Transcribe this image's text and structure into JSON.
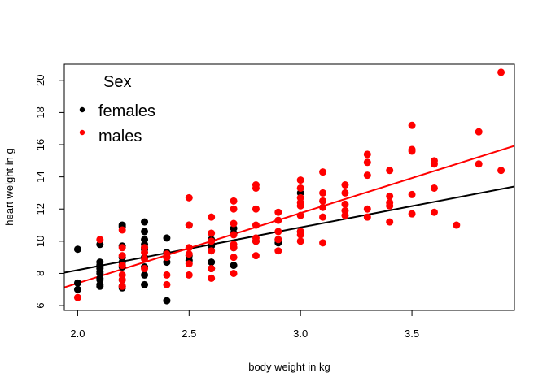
{
  "chart_data": {
    "type": "scatter",
    "title": "",
    "xlabel": "body weight in kg",
    "ylabel": "heart weight in g",
    "xlim": [
      1.94,
      3.96
    ],
    "ylim": [
      5.7,
      21.0
    ],
    "xticks": [
      2.0,
      2.5,
      3.0,
      3.5
    ],
    "xtick_labels": [
      "2.0",
      "2.5",
      "3.0",
      "3.5"
    ],
    "yticks": [
      6,
      8,
      10,
      12,
      14,
      16,
      18,
      20
    ],
    "ytick_labels": [
      "6",
      "8",
      "10",
      "12",
      "14",
      "16",
      "18",
      "20"
    ],
    "grid": false,
    "legend": {
      "title": "Sex",
      "position": "top-left",
      "entries": [
        {
          "label": "females",
          "color": "#000000"
        },
        {
          "label": "males",
          "color": "#ff0000"
        }
      ]
    },
    "series": [
      {
        "name": "females",
        "color": "#000000",
        "points": [
          [
            2.0,
            7.0
          ],
          [
            2.0,
            7.4
          ],
          [
            2.0,
            9.5
          ],
          [
            2.1,
            7.2
          ],
          [
            2.1,
            7.3
          ],
          [
            2.1,
            7.6
          ],
          [
            2.1,
            7.7
          ],
          [
            2.1,
            8.0
          ],
          [
            2.1,
            8.1
          ],
          [
            2.1,
            8.3
          ],
          [
            2.1,
            8.4
          ],
          [
            2.1,
            8.5
          ],
          [
            2.1,
            8.7
          ],
          [
            2.1,
            9.8
          ],
          [
            2.2,
            7.1
          ],
          [
            2.2,
            7.2
          ],
          [
            2.2,
            7.6
          ],
          [
            2.2,
            8.4
          ],
          [
            2.2,
            8.7
          ],
          [
            2.2,
            9.0
          ],
          [
            2.2,
            9.7
          ],
          [
            2.2,
            10.9
          ],
          [
            2.2,
            11.0
          ],
          [
            2.3,
            7.3
          ],
          [
            2.3,
            7.9
          ],
          [
            2.3,
            8.4
          ],
          [
            2.3,
            9.0
          ],
          [
            2.3,
            9.5
          ],
          [
            2.3,
            9.6
          ],
          [
            2.3,
            9.8
          ],
          [
            2.3,
            10.1
          ],
          [
            2.3,
            10.6
          ],
          [
            2.3,
            11.2
          ],
          [
            2.4,
            6.3
          ],
          [
            2.4,
            8.7
          ],
          [
            2.4,
            9.0
          ],
          [
            2.4,
            9.3
          ],
          [
            2.4,
            10.2
          ],
          [
            2.5,
            8.8
          ],
          [
            2.5,
            9.1
          ],
          [
            2.5,
            11.0
          ],
          [
            2.6,
            8.3
          ],
          [
            2.6,
            8.7
          ],
          [
            2.6,
            9.7
          ],
          [
            2.6,
            10.1
          ],
          [
            2.7,
            8.5
          ],
          [
            2.7,
            9.6
          ],
          [
            2.7,
            10.5
          ],
          [
            2.7,
            10.8
          ],
          [
            2.8,
            10.0
          ],
          [
            2.9,
            9.9
          ],
          [
            2.9,
            10.1
          ],
          [
            3.0,
            10.6
          ],
          [
            3.0,
            13.0
          ]
        ]
      },
      {
        "name": "males",
        "color": "#ff0000",
        "points": [
          [
            2.0,
            6.5
          ],
          [
            2.1,
            10.1
          ],
          [
            2.2,
            7.2
          ],
          [
            2.2,
            7.6
          ],
          [
            2.2,
            7.9
          ],
          [
            2.2,
            8.5
          ],
          [
            2.2,
            9.1
          ],
          [
            2.2,
            9.6
          ],
          [
            2.2,
            10.7
          ],
          [
            2.3,
            8.3
          ],
          [
            2.3,
            8.9
          ],
          [
            2.3,
            9.3
          ],
          [
            2.3,
            9.6
          ],
          [
            2.4,
            7.3
          ],
          [
            2.4,
            7.9
          ],
          [
            2.4,
            9.0
          ],
          [
            2.4,
            9.2
          ],
          [
            2.5,
            7.9
          ],
          [
            2.5,
            8.6
          ],
          [
            2.5,
            9.2
          ],
          [
            2.5,
            9.6
          ],
          [
            2.5,
            11.0
          ],
          [
            2.5,
            12.7
          ],
          [
            2.6,
            7.7
          ],
          [
            2.6,
            8.3
          ],
          [
            2.6,
            9.4
          ],
          [
            2.6,
            10.0
          ],
          [
            2.6,
            10.5
          ],
          [
            2.6,
            11.5
          ],
          [
            2.7,
            8.0
          ],
          [
            2.7,
            9.0
          ],
          [
            2.7,
            9.6
          ],
          [
            2.7,
            9.8
          ],
          [
            2.7,
            10.4
          ],
          [
            2.7,
            11.1
          ],
          [
            2.7,
            12.0
          ],
          [
            2.7,
            12.5
          ],
          [
            2.8,
            9.1
          ],
          [
            2.8,
            10.0
          ],
          [
            2.8,
            10.2
          ],
          [
            2.8,
            11.0
          ],
          [
            2.8,
            12.0
          ],
          [
            2.8,
            13.3
          ],
          [
            2.8,
            13.5
          ],
          [
            2.9,
            9.4
          ],
          [
            2.9,
            10.1
          ],
          [
            2.9,
            10.6
          ],
          [
            2.9,
            11.3
          ],
          [
            2.9,
            11.8
          ],
          [
            3.0,
            10.0
          ],
          [
            3.0,
            10.4
          ],
          [
            3.0,
            10.6
          ],
          [
            3.0,
            11.6
          ],
          [
            3.0,
            12.2
          ],
          [
            3.0,
            12.4
          ],
          [
            3.0,
            12.7
          ],
          [
            3.0,
            13.3
          ],
          [
            3.0,
            13.8
          ],
          [
            3.1,
            9.9
          ],
          [
            3.1,
            11.5
          ],
          [
            3.1,
            12.1
          ],
          [
            3.1,
            12.5
          ],
          [
            3.1,
            13.0
          ],
          [
            3.1,
            14.3
          ],
          [
            3.2,
            11.6
          ],
          [
            3.2,
            11.9
          ],
          [
            3.2,
            12.3
          ],
          [
            3.2,
            13.0
          ],
          [
            3.2,
            13.5
          ],
          [
            3.3,
            11.5
          ],
          [
            3.3,
            12.0
          ],
          [
            3.3,
            14.1
          ],
          [
            3.3,
            14.9
          ],
          [
            3.3,
            15.4
          ],
          [
            3.4,
            11.2
          ],
          [
            3.4,
            12.2
          ],
          [
            3.4,
            12.4
          ],
          [
            3.4,
            12.8
          ],
          [
            3.4,
            14.4
          ],
          [
            3.5,
            11.7
          ],
          [
            3.5,
            12.9
          ],
          [
            3.5,
            15.6
          ],
          [
            3.5,
            15.7
          ],
          [
            3.5,
            17.2
          ],
          [
            3.6,
            11.8
          ],
          [
            3.6,
            13.3
          ],
          [
            3.6,
            14.8
          ],
          [
            3.6,
            15.0
          ],
          [
            3.7,
            11.0
          ],
          [
            3.8,
            14.8
          ],
          [
            3.8,
            16.8
          ],
          [
            3.9,
            14.4
          ],
          [
            3.9,
            20.5
          ]
        ]
      }
    ],
    "regression_lines": [
      {
        "series": "females",
        "color": "#000000",
        "x": [
          1.94,
          3.96
        ],
        "y": [
          8.05,
          13.4
        ]
      },
      {
        "series": "males",
        "color": "#ff0000",
        "x": [
          1.94,
          3.96
        ],
        "y": [
          7.13,
          15.93
        ]
      }
    ]
  }
}
